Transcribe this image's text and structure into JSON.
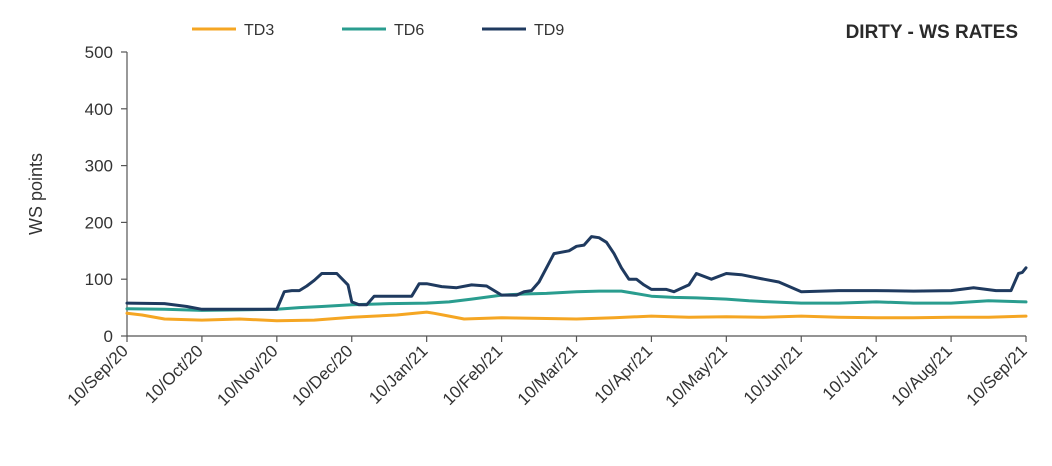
{
  "chart_data": {
    "type": "line",
    "title": "DIRTY - WS RATES",
    "ylabel": "WS points",
    "xlabel": "",
    "ylim": [
      0,
      500
    ],
    "yticks": [
      0,
      100,
      200,
      300,
      400,
      500
    ],
    "x_tick_labels": [
      "10/Sep/20",
      "10/Oct/20",
      "10/Nov/20",
      "10/Dec/20",
      "10/Jan/21",
      "10/Feb/21",
      "10/Mar/21",
      "10/Apr/21",
      "10/May/21",
      "10/Jun/21",
      "10/Jul/21",
      "10/Aug/21",
      "10/Sep/21"
    ],
    "legend_position": "top",
    "grid": false,
    "series": [
      {
        "name": "TD3",
        "color": "#F5A623",
        "points": [
          [
            0,
            40
          ],
          [
            0.2,
            37
          ],
          [
            0.5,
            30
          ],
          [
            1,
            28
          ],
          [
            1.5,
            30
          ],
          [
            2,
            27
          ],
          [
            2.5,
            28
          ],
          [
            3,
            33
          ],
          [
            3.3,
            35
          ],
          [
            3.6,
            37
          ],
          [
            4,
            42
          ],
          [
            4.1,
            40
          ],
          [
            4.3,
            35
          ],
          [
            4.5,
            30
          ],
          [
            5,
            32
          ],
          [
            5.5,
            31
          ],
          [
            6,
            30
          ],
          [
            6.5,
            32
          ],
          [
            7,
            35
          ],
          [
            7.5,
            33
          ],
          [
            8,
            34
          ],
          [
            8.5,
            33
          ],
          [
            9,
            35
          ],
          [
            9.5,
            33
          ],
          [
            10,
            32
          ],
          [
            10.5,
            32
          ],
          [
            11,
            33
          ],
          [
            11.5,
            33
          ],
          [
            12,
            35
          ]
        ]
      },
      {
        "name": "TD6",
        "color": "#2A9D8F",
        "points": [
          [
            0,
            48
          ],
          [
            0.5,
            47
          ],
          [
            1,
            45
          ],
          [
            1.5,
            46
          ],
          [
            2,
            47
          ],
          [
            2.3,
            50
          ],
          [
            2.6,
            52
          ],
          [
            3,
            55
          ],
          [
            3.5,
            57
          ],
          [
            4,
            58
          ],
          [
            4.3,
            60
          ],
          [
            4.6,
            65
          ],
          [
            5,
            72
          ],
          [
            5.3,
            74
          ],
          [
            5.6,
            75
          ],
          [
            6,
            78
          ],
          [
            6.3,
            79
          ],
          [
            6.6,
            79
          ],
          [
            7,
            70
          ],
          [
            7.3,
            68
          ],
          [
            7.6,
            67
          ],
          [
            8,
            65
          ],
          [
            8.3,
            62
          ],
          [
            8.6,
            60
          ],
          [
            9,
            58
          ],
          [
            9.5,
            58
          ],
          [
            10,
            60
          ],
          [
            10.5,
            58
          ],
          [
            11,
            58
          ],
          [
            11.5,
            62
          ],
          [
            12,
            60
          ]
        ]
      },
      {
        "name": "TD9",
        "color": "#1F3A5F",
        "points": [
          [
            0,
            58
          ],
          [
            0.5,
            57
          ],
          [
            0.8,
            52
          ],
          [
            1,
            47
          ],
          [
            1.5,
            47
          ],
          [
            2,
            47
          ],
          [
            2.1,
            78
          ],
          [
            2.2,
            80
          ],
          [
            2.3,
            80
          ],
          [
            2.4,
            88
          ],
          [
            2.5,
            98
          ],
          [
            2.6,
            110
          ],
          [
            2.8,
            110
          ],
          [
            2.95,
            90
          ],
          [
            3,
            60
          ],
          [
            3.1,
            55
          ],
          [
            3.2,
            55
          ],
          [
            3.3,
            70
          ],
          [
            3.5,
            70
          ],
          [
            3.8,
            70
          ],
          [
            3.9,
            92
          ],
          [
            4,
            92
          ],
          [
            4.2,
            87
          ],
          [
            4.4,
            85
          ],
          [
            4.6,
            90
          ],
          [
            4.8,
            88
          ],
          [
            5,
            72
          ],
          [
            5.2,
            72
          ],
          [
            5.3,
            78
          ],
          [
            5.4,
            80
          ],
          [
            5.5,
            95
          ],
          [
            5.6,
            120
          ],
          [
            5.7,
            145
          ],
          [
            5.9,
            150
          ],
          [
            6,
            158
          ],
          [
            6.1,
            160
          ],
          [
            6.2,
            175
          ],
          [
            6.3,
            173
          ],
          [
            6.4,
            165
          ],
          [
            6.5,
            145
          ],
          [
            6.6,
            120
          ],
          [
            6.7,
            100
          ],
          [
            6.8,
            100
          ],
          [
            6.9,
            90
          ],
          [
            7,
            82
          ],
          [
            7.2,
            82
          ],
          [
            7.3,
            78
          ],
          [
            7.4,
            84
          ],
          [
            7.5,
            90
          ],
          [
            7.6,
            110
          ],
          [
            7.8,
            100
          ],
          [
            8,
            110
          ],
          [
            8.2,
            108
          ],
          [
            8.5,
            100
          ],
          [
            8.7,
            95
          ],
          [
            9,
            78
          ],
          [
            9.5,
            80
          ],
          [
            10,
            80
          ],
          [
            10.5,
            79
          ],
          [
            11,
            80
          ],
          [
            11.3,
            85
          ],
          [
            11.6,
            80
          ],
          [
            11.8,
            80
          ],
          [
            11.9,
            110
          ],
          [
            11.95,
            112
          ],
          [
            12,
            120
          ]
        ]
      }
    ]
  }
}
